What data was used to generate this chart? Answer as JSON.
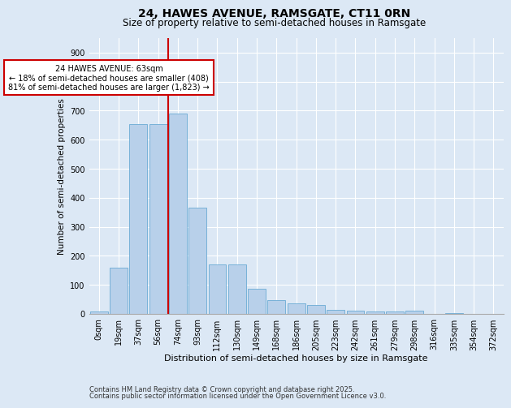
{
  "title1": "24, HAWES AVENUE, RAMSGATE, CT11 0RN",
  "title2": "Size of property relative to semi-detached houses in Ramsgate",
  "xlabel": "Distribution of semi-detached houses by size in Ramsgate",
  "ylabel": "Number of semi-detached properties",
  "bar_color": "#b8d0ea",
  "bar_edge_color": "#6aaad4",
  "background_color": "#dce8f5",
  "grid_color": "#ffffff",
  "categories": [
    "0sqm",
    "19sqm",
    "37sqm",
    "56sqm",
    "74sqm",
    "93sqm",
    "112sqm",
    "130sqm",
    "149sqm",
    "168sqm",
    "186sqm",
    "205sqm",
    "223sqm",
    "242sqm",
    "261sqm",
    "279sqm",
    "298sqm",
    "316sqm",
    "335sqm",
    "354sqm",
    "372sqm"
  ],
  "values": [
    7,
    160,
    655,
    655,
    690,
    365,
    170,
    170,
    88,
    47,
    37,
    30,
    14,
    11,
    8,
    8,
    10,
    0,
    2,
    0,
    0
  ],
  "vline_position": 3.5,
  "vline_color": "#cc0000",
  "annotation_text": "24 HAWES AVENUE: 63sqm\n← 18% of semi-detached houses are smaller (408)\n81% of semi-detached houses are larger (1,823) →",
  "annotation_box_color": "#ffffff",
  "annotation_box_edge_color": "#cc0000",
  "ylim": [
    0,
    950
  ],
  "yticks": [
    0,
    100,
    200,
    300,
    400,
    500,
    600,
    700,
    800,
    900
  ],
  "footer1": "Contains HM Land Registry data © Crown copyright and database right 2025.",
  "footer2": "Contains public sector information licensed under the Open Government Licence v3.0.",
  "title1_fontsize": 10,
  "title2_fontsize": 8.5,
  "xlabel_fontsize": 8,
  "ylabel_fontsize": 7.5,
  "tick_fontsize": 7,
  "annotation_fontsize": 7,
  "footer_fontsize": 6
}
